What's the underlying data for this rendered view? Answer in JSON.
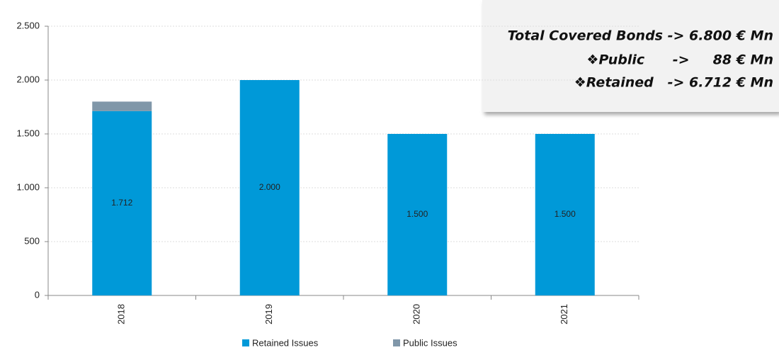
{
  "chart_data": {
    "type": "stacked-bar",
    "categories": [
      "2018",
      "2019",
      "2020",
      "2021"
    ],
    "series": [
      {
        "name": "Retained Issues",
        "color": "#0099d8",
        "values": [
          1712,
          2000,
          1500,
          1500
        ],
        "value_labels": [
          "1.712",
          "2.000",
          "1.500",
          "1.500"
        ]
      },
      {
        "name": "Public Issues",
        "color": "#8097a9",
        "values": [
          88,
          0,
          0,
          0
        ]
      }
    ],
    "ylim": [
      0,
      2500
    ],
    "yticks": [
      0,
      500,
      {
        "value": 1000,
        "label": "1.000"
      },
      {
        "value": 1500,
        "label": "1.500"
      },
      {
        "value": 2000,
        "label": "2.000"
      },
      {
        "value": 2500,
        "label": "2.500"
      }
    ],
    "grid": true,
    "annotations": [
      "Total Covered Bonds -> 6.800 € Mn",
      "❖Public      ->     88 € Mn",
      "❖Retained   -> 6.712 € Mn"
    ]
  }
}
